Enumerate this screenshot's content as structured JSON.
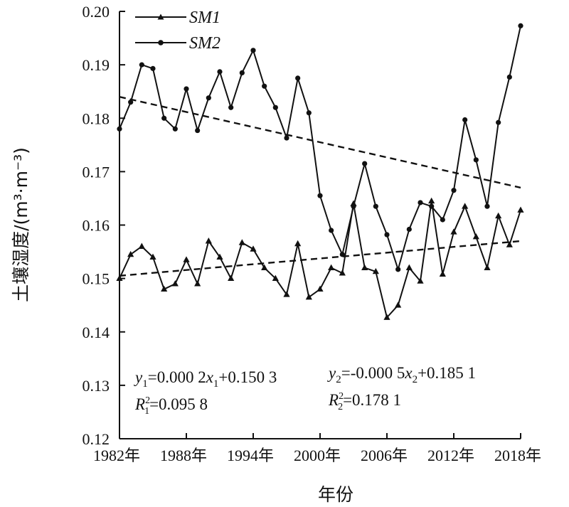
{
  "chart_data": {
    "type": "line",
    "xlabel": "年份",
    "ylabel": "土壤湿度/(m³·m⁻³)",
    "xlim": [
      1982,
      2018
    ],
    "ylim": [
      0.12,
      0.2
    ],
    "x_ticks": [
      1982,
      1988,
      1994,
      2000,
      2006,
      2012,
      2018
    ],
    "x_tick_labels": [
      "1982年",
      "1988年",
      "1994年",
      "2000年",
      "2006年",
      "2012年",
      "2018年"
    ],
    "y_ticks": [
      "0.12",
      "0.13",
      "0.14",
      "0.15",
      "0.16",
      "0.17",
      "0.18",
      "0.19",
      "0.20"
    ],
    "grid": false,
    "legend": "top-left",
    "x": [
      1982,
      1983,
      1984,
      1985,
      1986,
      1987,
      1988,
      1989,
      1990,
      1991,
      1992,
      1993,
      1994,
      1995,
      1996,
      1997,
      1998,
      1999,
      2000,
      2001,
      2002,
      2003,
      2004,
      2005,
      2006,
      2007,
      2008,
      2009,
      2010,
      2011,
      2012,
      2013,
      2014,
      2015,
      2016,
      2017,
      2018
    ],
    "series": [
      {
        "name": "SM1",
        "marker": "triangle",
        "values": [
          0.15,
          0.1545,
          0.156,
          0.154,
          0.148,
          0.149,
          0.1535,
          0.149,
          0.157,
          0.154,
          0.15,
          0.1567,
          0.1555,
          0.152,
          0.15,
          0.147,
          0.1565,
          0.1465,
          0.148,
          0.152,
          0.151,
          0.164,
          0.152,
          0.1513,
          0.1427,
          0.145,
          0.152,
          0.1495,
          0.1645,
          0.1508,
          0.1587,
          0.1635,
          0.1578,
          0.152,
          0.1617,
          0.1563,
          0.1628
        ]
      },
      {
        "name": "SM2",
        "marker": "circle",
        "values": [
          0.178,
          0.183,
          0.19,
          0.1893,
          0.18,
          0.178,
          0.1855,
          0.1777,
          0.1838,
          0.1887,
          0.182,
          0.1885,
          0.1927,
          0.186,
          0.182,
          0.1763,
          0.1875,
          0.181,
          0.1655,
          0.159,
          0.1545,
          0.1635,
          0.1715,
          0.1635,
          0.1582,
          0.1517,
          0.1592,
          0.1642,
          0.1635,
          0.161,
          0.1665,
          0.1797,
          0.1722,
          0.1635,
          0.1792,
          0.1877,
          0.1973
        ]
      }
    ],
    "trendlines": [
      {
        "series": "SM1",
        "start": [
          1982,
          0.1505
        ],
        "end": [
          2018,
          0.157
        ]
      },
      {
        "series": "SM2",
        "start": [
          1982,
          0.184
        ],
        "end": [
          2018,
          0.167
        ]
      }
    ],
    "annotations": {
      "eq1_y": "y",
      "eq1_sub": "1",
      "eq1_mid": "=0.000 2",
      "eq1_x": "x",
      "eq1_xsub": "1",
      "eq1_end": "+0.150 3",
      "r1_R": "R",
      "r1_sup": "2",
      "r1_sub": "1",
      "r1_end": "=0.095 8",
      "eq2_y": "y",
      "eq2_sub": "2",
      "eq2_mid": "=-0.000 5",
      "eq2_x": "x",
      "eq2_xsub": "2",
      "eq2_end": "+0.185 1",
      "r2_R": "R",
      "r2_sup": "2",
      "r2_sub": "2",
      "r2_end": "=0.178 1"
    }
  }
}
